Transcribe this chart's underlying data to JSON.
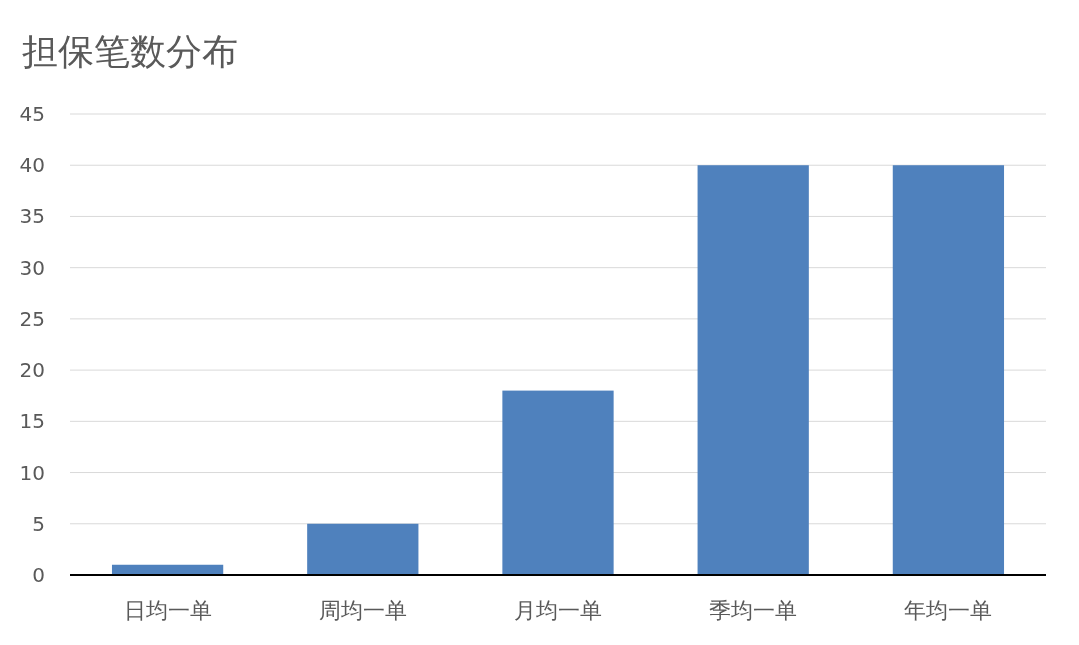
{
  "chart_data": {
    "type": "bar",
    "title": "担保笔数分布",
    "categories": [
      "日均一单",
      "周均一单",
      "月均一单",
      "季均一单",
      "年均一单"
    ],
    "values": [
      1,
      5,
      18,
      40,
      40
    ],
    "color": "#4f81bd",
    "ylim": [
      0,
      45
    ],
    "yticks": [
      0,
      5,
      10,
      15,
      20,
      25,
      30,
      35,
      40,
      45
    ],
    "grid": "y"
  }
}
